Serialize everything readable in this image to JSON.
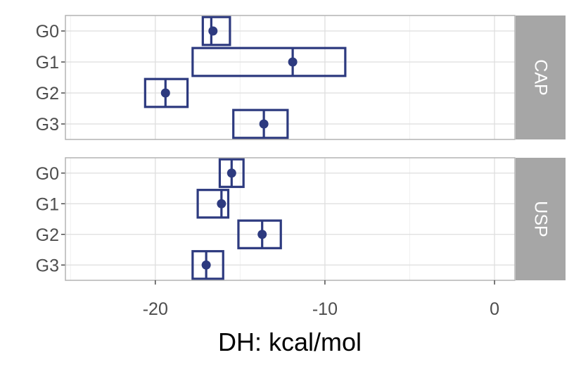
{
  "chart_data": {
    "type": "faceted-dot-interval",
    "xlabel": "DH: kcal/mol",
    "ylabel": "",
    "xlim": [
      -25.3,
      1.2
    ],
    "x_ticks": [
      -20,
      -10,
      0
    ],
    "x_tick_labels": [
      "-20",
      "-10",
      "0"
    ],
    "categories": [
      "G0",
      "G1",
      "G2",
      "G3"
    ],
    "grid": true,
    "colors": {
      "series": "#2d3a7f",
      "strip": "#a6a6a6",
      "grid": "#dedede",
      "border": "#b3b3b3"
    },
    "panels": [
      {
        "label": "CAP",
        "points": [
          {
            "group": "G0",
            "mean": -16.6,
            "lower": -17.2,
            "upper": -15.6,
            "center": -16.7
          },
          {
            "group": "G1",
            "mean": -11.9,
            "lower": -17.8,
            "upper": -8.8,
            "center": -11.9
          },
          {
            "group": "G2",
            "mean": -19.4,
            "lower": -20.6,
            "upper": -18.1,
            "center": -19.4
          },
          {
            "group": "G3",
            "mean": -13.6,
            "lower": -15.4,
            "upper": -12.2,
            "center": -13.6
          }
        ]
      },
      {
        "label": "USP",
        "points": [
          {
            "group": "G0",
            "mean": -15.5,
            "lower": -16.2,
            "upper": -14.8,
            "center": -15.5
          },
          {
            "group": "G1",
            "mean": -16.1,
            "lower": -17.5,
            "upper": -15.7,
            "center": -16.1
          },
          {
            "group": "G2",
            "mean": -13.7,
            "lower": -15.1,
            "upper": -12.6,
            "center": -13.7
          },
          {
            "group": "G3",
            "mean": -17.0,
            "lower": -17.8,
            "upper": -16.0,
            "center": -17.0
          }
        ]
      }
    ]
  }
}
